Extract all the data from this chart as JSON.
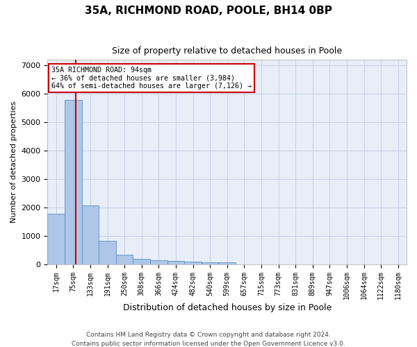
{
  "title1": "35A, RICHMOND ROAD, POOLE, BH14 0BP",
  "title2": "Size of property relative to detached houses in Poole",
  "xlabel": "Distribution of detached houses by size in Poole",
  "ylabel": "Number of detached properties",
  "bar_labels": [
    "17sqm",
    "75sqm",
    "133sqm",
    "191sqm",
    "250sqm",
    "308sqm",
    "366sqm",
    "424sqm",
    "482sqm",
    "540sqm",
    "599sqm",
    "657sqm",
    "715sqm",
    "773sqm",
    "831sqm",
    "889sqm",
    "947sqm",
    "1006sqm",
    "1064sqm",
    "1122sqm",
    "1180sqm"
  ],
  "bar_values": [
    1780,
    5780,
    2060,
    820,
    340,
    195,
    130,
    110,
    100,
    75,
    65,
    0,
    0,
    0,
    0,
    0,
    0,
    0,
    0,
    0,
    0
  ],
  "bar_color": "#aec6e8",
  "bar_edge_color": "#5a8fc2",
  "red_line_x": 1.15,
  "property_line_label": "35A RICHMOND ROAD: 94sqm",
  "annotation_line1": "← 36% of detached houses are smaller (3,984)",
  "annotation_line2": "64% of semi-detached houses are larger (7,126) →",
  "annotation_box_color": "#ffffff",
  "annotation_box_edge": "#cc0000",
  "red_line_color": "#cc0000",
  "ylim_max": 7200,
  "yticks": [
    0,
    1000,
    2000,
    3000,
    4000,
    5000,
    6000,
    7000
  ],
  "grid_color": "#c8d4e8",
  "background_color": "#e8eef8",
  "footer1": "Contains HM Land Registry data © Crown copyright and database right 2024.",
  "footer2": "Contains public sector information licensed under the Open Government Licence v3.0."
}
